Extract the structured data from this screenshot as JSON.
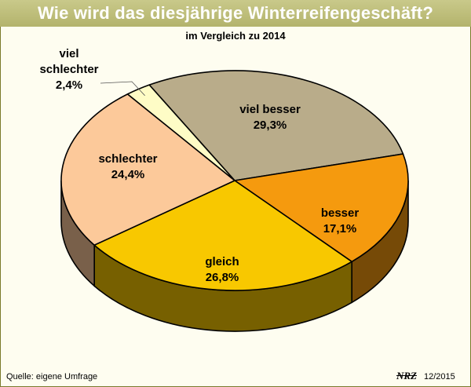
{
  "header": {
    "title": "Wie wird das diesjährige Winterreifengeschäft?",
    "subtitle": "im Vergleich zu 2014"
  },
  "footer": {
    "source": "Quelle: eigene Umfrage",
    "logo_text": "NRZ",
    "date": "12/2015"
  },
  "chart_data": {
    "type": "pie",
    "three_d": true,
    "slices": [
      {
        "label": "viel besser",
        "value_text": "29,3%",
        "value": 29.3,
        "color": "#b9ac8a"
      },
      {
        "label": "besser",
        "value_text": "17,1%",
        "value": 17.1,
        "color": "#f59a0e"
      },
      {
        "label": "gleich",
        "value_text": "26,8%",
        "value": 26.8,
        "color": "#f8c800"
      },
      {
        "label": "schlechter",
        "value_text": "24,4%",
        "value": 24.4,
        "color": "#fcc99a"
      },
      {
        "label": "viel schlechter",
        "value_text": "2,4%",
        "value": 2.4,
        "color": "#fefcc6"
      }
    ]
  }
}
